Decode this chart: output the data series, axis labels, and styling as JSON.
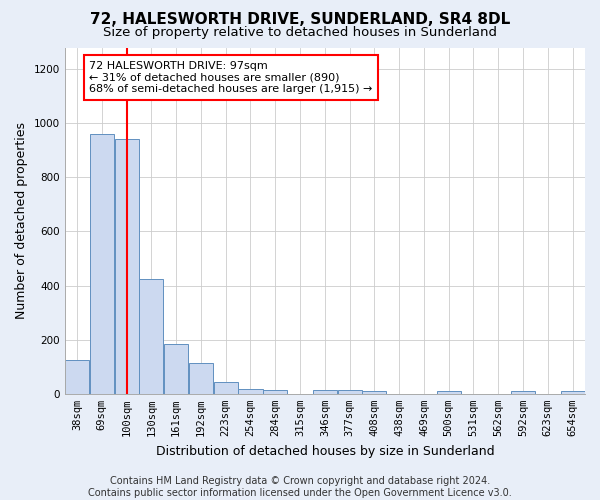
{
  "title": "72, HALESWORTH DRIVE, SUNDERLAND, SR4 8DL",
  "subtitle": "Size of property relative to detached houses in Sunderland",
  "xlabel": "Distribution of detached houses by size in Sunderland",
  "ylabel": "Number of detached properties",
  "categories": [
    "38sqm",
    "69sqm",
    "100sqm",
    "130sqm",
    "161sqm",
    "192sqm",
    "223sqm",
    "254sqm",
    "284sqm",
    "315sqm",
    "346sqm",
    "377sqm",
    "408sqm",
    "438sqm",
    "469sqm",
    "500sqm",
    "531sqm",
    "562sqm",
    "592sqm",
    "623sqm",
    "654sqm"
  ],
  "values": [
    125,
    960,
    940,
    425,
    185,
    115,
    42,
    18,
    15,
    0,
    13,
    13,
    10,
    0,
    0,
    9,
    0,
    0,
    9,
    0,
    10
  ],
  "bar_color": "#ccd9f0",
  "bar_edge_color": "#6090c0",
  "red_line_index": 2,
  "annotation_text": "72 HALESWORTH DRIVE: 97sqm\n← 31% of detached houses are smaller (890)\n68% of semi-detached houses are larger (1,915) →",
  "annotation_box_color": "white",
  "annotation_box_edge_color": "red",
  "ylim": [
    0,
    1280
  ],
  "yticks": [
    0,
    200,
    400,
    600,
    800,
    1000,
    1200
  ],
  "footer": "Contains HM Land Registry data © Crown copyright and database right 2024.\nContains public sector information licensed under the Open Government Licence v3.0.",
  "fig_bg_color": "#e8eef8",
  "ax_bg_color": "#ffffff",
  "grid_color": "#cccccc",
  "title_fontsize": 11,
  "subtitle_fontsize": 9.5,
  "ylabel_fontsize": 9,
  "xlabel_fontsize": 9,
  "tick_fontsize": 7.5,
  "footer_fontsize": 7,
  "annotation_fontsize": 8
}
